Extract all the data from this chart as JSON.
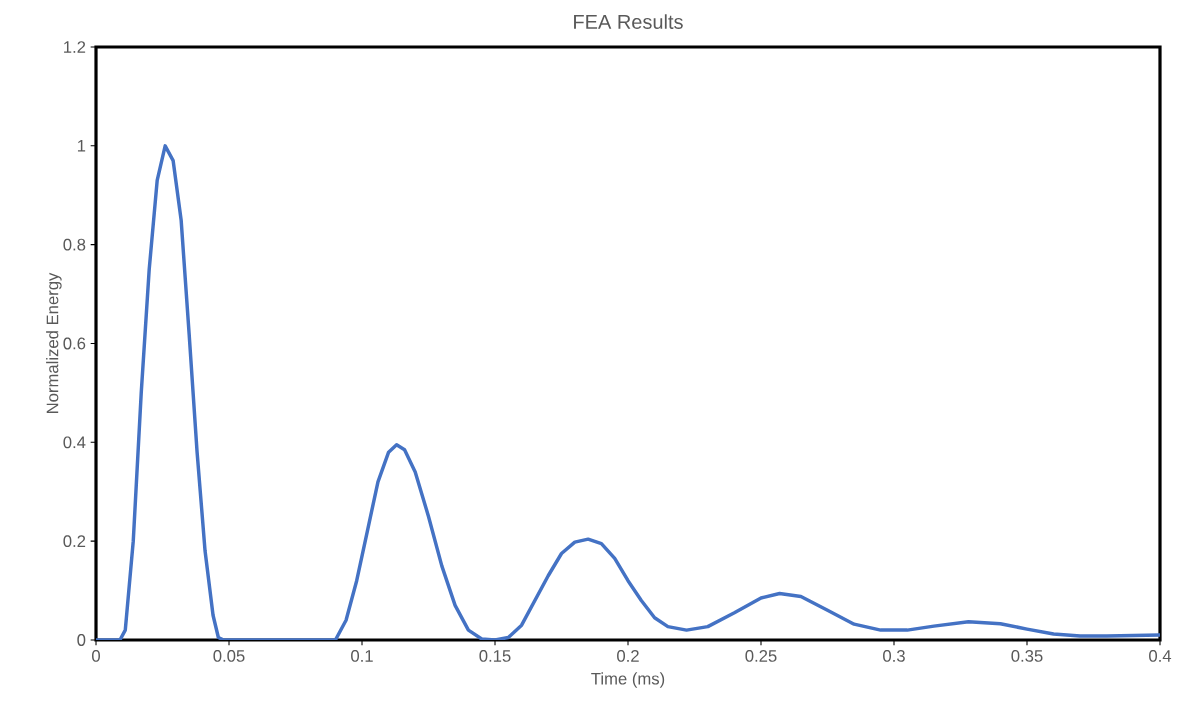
{
  "chart_data": {
    "type": "line",
    "title": "FEA Results",
    "xlabel": "Time (ms)",
    "ylabel": "Normalized Energy",
    "x": [
      0,
      0.009,
      0.011,
      0.014,
      0.017,
      0.02,
      0.023,
      0.026,
      0.029,
      0.032,
      0.035,
      0.038,
      0.041,
      0.044,
      0.046,
      0.048,
      0.09,
      0.094,
      0.098,
      0.102,
      0.106,
      0.11,
      0.113,
      0.116,
      0.12,
      0.125,
      0.13,
      0.135,
      0.14,
      0.145,
      0.15,
      0.155,
      0.16,
      0.165,
      0.17,
      0.175,
      0.18,
      0.185,
      0.19,
      0.195,
      0.2,
      0.205,
      0.21,
      0.215,
      0.222,
      0.23,
      0.24,
      0.25,
      0.257,
      0.265,
      0.275,
      0.285,
      0.295,
      0.305,
      0.315,
      0.328,
      0.34,
      0.35,
      0.36,
      0.37,
      0.38,
      0.39,
      0.4
    ],
    "series": [
      {
        "color": "#4472c4",
        "values": [
          0,
          0,
          0.02,
          0.2,
          0.5,
          0.75,
          0.93,
          1.0,
          0.97,
          0.85,
          0.62,
          0.38,
          0.18,
          0.05,
          0.005,
          0,
          0,
          0.04,
          0.12,
          0.22,
          0.32,
          0.38,
          0.395,
          0.385,
          0.34,
          0.25,
          0.15,
          0.07,
          0.02,
          0.002,
          0,
          0.005,
          0.03,
          0.08,
          0.13,
          0.175,
          0.198,
          0.204,
          0.195,
          0.165,
          0.12,
          0.08,
          0.045,
          0.027,
          0.02,
          0.027,
          0.055,
          0.085,
          0.094,
          0.088,
          0.06,
          0.032,
          0.02,
          0.02,
          0.028,
          0.037,
          0.033,
          0.022,
          0.012,
          0.008,
          0.008,
          0.009,
          0.01
        ]
      }
    ],
    "xlim": [
      0,
      0.4
    ],
    "xticks": [
      0,
      0.05,
      0.1,
      0.15,
      0.2,
      0.25,
      0.3,
      0.35,
      0.4
    ],
    "ylim": [
      0,
      1.2
    ],
    "yticks": [
      0,
      0.2,
      0.4,
      0.6,
      0.8,
      1,
      1.2
    ],
    "line_style": "solid"
  }
}
